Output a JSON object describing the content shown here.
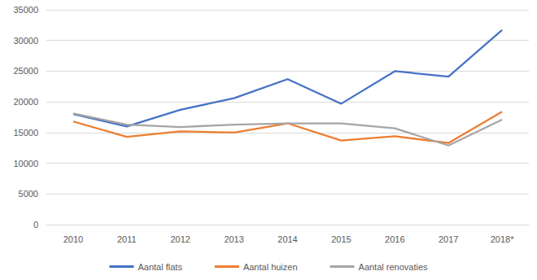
{
  "chart_data": {
    "type": "line",
    "categories": [
      "2010",
      "2011",
      "2012",
      "2013",
      "2014",
      "2015",
      "2016",
      "2017",
      "2018*"
    ],
    "series": [
      {
        "name": "Aantal flats",
        "color": "#4472c4",
        "values": [
          18000,
          16000,
          18700,
          20600,
          23700,
          19700,
          25000,
          24100,
          31700
        ]
      },
      {
        "name": "Aantal huizen",
        "color": "#ed7d31",
        "values": [
          16800,
          14300,
          15200,
          15000,
          16500,
          13700,
          14400,
          13300,
          18400
        ]
      },
      {
        "name": "Aantal renovaties",
        "color": "#a5a5a5",
        "values": [
          18100,
          16300,
          15900,
          16300,
          16500,
          16500,
          15700,
          12900,
          17100
        ]
      }
    ],
    "ylim": [
      0,
      35000
    ],
    "yticks": [
      0,
      5000,
      10000,
      15000,
      20000,
      25000,
      30000,
      35000
    ],
    "grid": true,
    "legend": "bottom"
  }
}
